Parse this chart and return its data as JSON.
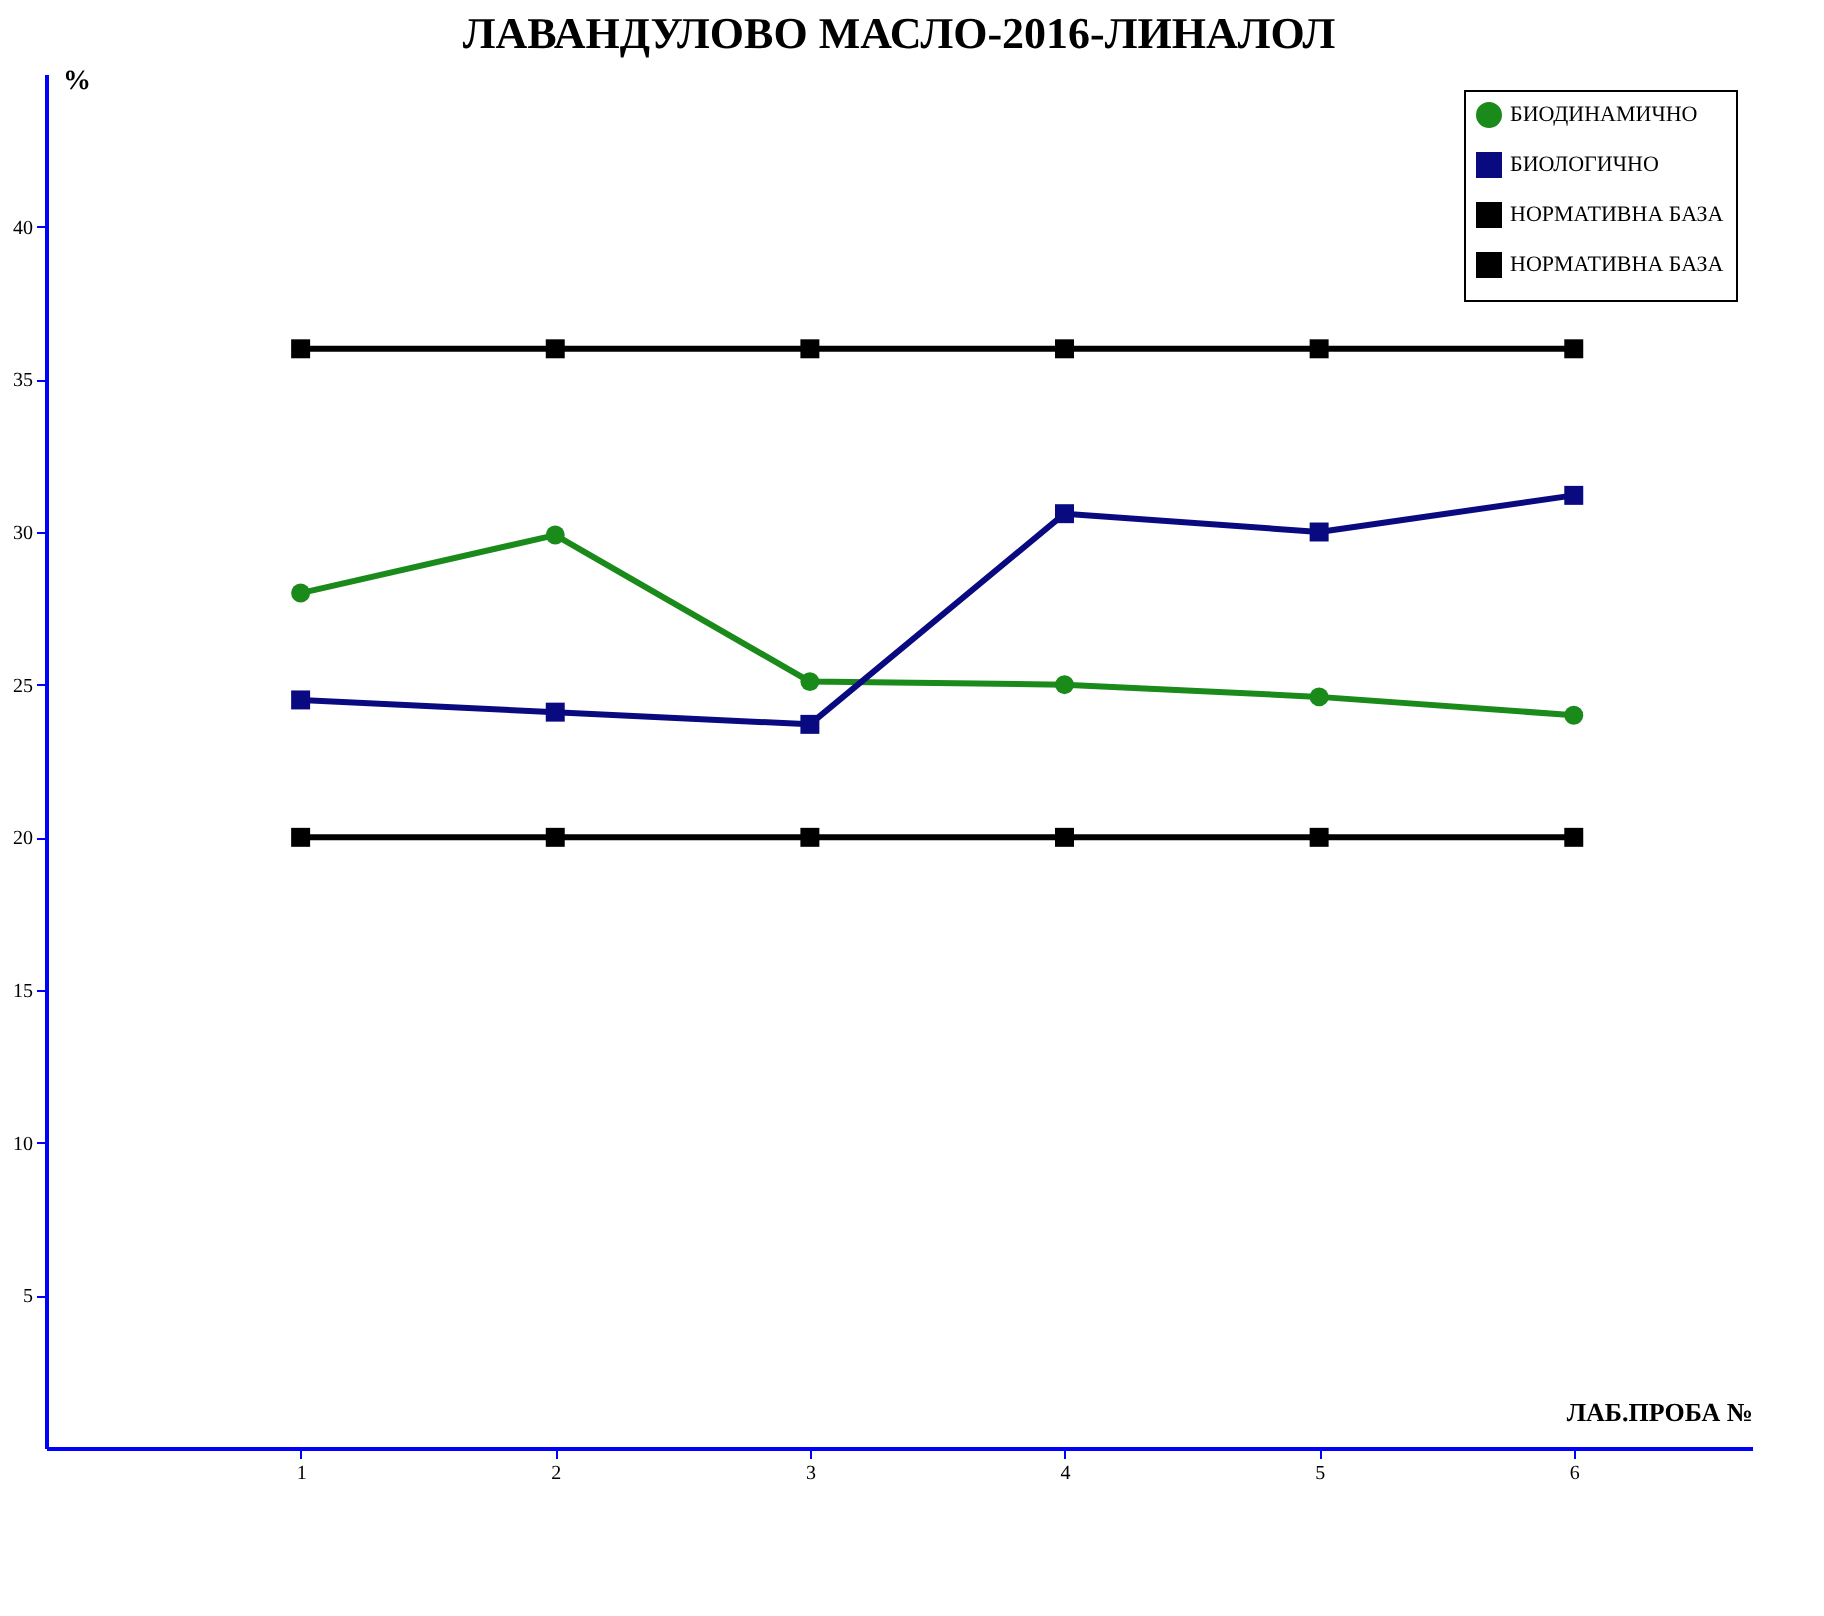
{
  "chart_data": {
    "type": "line",
    "title": "ЛАВАНДУЛОВО МАСЛО-2016-ЛИНАЛОЛ",
    "xlabel": "ЛАБ.ПРОБА №",
    "ylabel": "%",
    "x": [
      1,
      2,
      3,
      4,
      5,
      6
    ],
    "xlim": [
      0,
      6.7
    ],
    "xticks": [
      1,
      2,
      3,
      4,
      5,
      6
    ],
    "ylim": [
      0,
      45
    ],
    "yticks": [
      5,
      10,
      15,
      20,
      25,
      30,
      35,
      40
    ],
    "grid": false,
    "legend": "top right",
    "line_style": "solid",
    "series": [
      {
        "name": "БИОДИНАМИЧНО",
        "color": "#1a8a1a",
        "marker": "circle",
        "values": [
          28.0,
          29.9,
          25.1,
          25.0,
          24.6,
          24.0
        ]
      },
      {
        "name": "БИОЛОГИЧНО",
        "color": "#0a0a80",
        "marker": "square",
        "values": [
          24.5,
          24.1,
          23.7,
          30.6,
          30.0,
          31.2
        ]
      },
      {
        "name": "НОРМАТИВНА БАЗА",
        "color": "#000000",
        "marker": "square",
        "values": [
          36,
          36,
          36,
          36,
          36,
          36
        ]
      },
      {
        "name": "НОРМАТИВНА БАЗА",
        "color": "#000000",
        "marker": "square",
        "values": [
          20,
          20,
          20,
          20,
          20,
          20
        ]
      }
    ]
  }
}
